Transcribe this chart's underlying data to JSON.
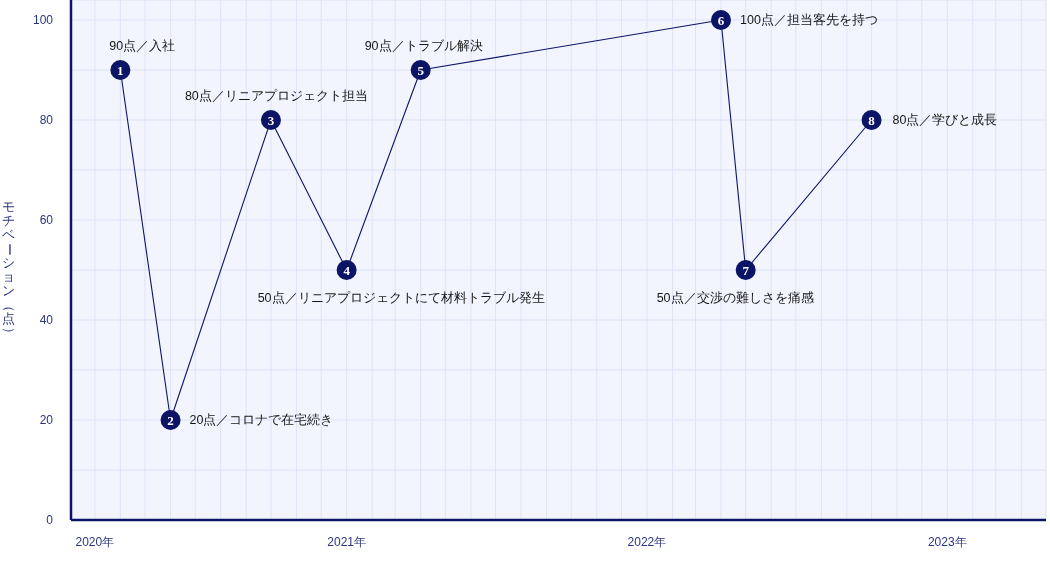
{
  "chart_data": {
    "type": "line",
    "ylabel": "モチベーション（点）",
    "x": [
      "2020-04",
      "2020-06",
      "2020-10",
      "2021-01",
      "2021-04",
      "2022-04",
      "2022-05",
      "2022-10"
    ],
    "series": [
      {
        "color": "#0c1466",
        "values": [
          90,
          20,
          80,
          50,
          90,
          100,
          50,
          80
        ]
      }
    ],
    "xlim": [
      "2020-02",
      "2023-05"
    ],
    "xticks": [
      {
        "value": "2020-02",
        "label": null
      },
      {
        "value": "2020-03",
        "label": "2020年"
      },
      {
        "value": "2020-04",
        "label": null
      },
      {
        "value": "2020-05",
        "label": null
      },
      {
        "value": "2020-06",
        "label": null
      },
      {
        "value": "2020-07",
        "label": null
      },
      {
        "value": "2020-08",
        "label": null
      },
      {
        "value": "2020-09",
        "label": null
      },
      {
        "value": "2020-10",
        "label": null
      },
      {
        "value": "2020-11",
        "label": null
      },
      {
        "value": "2020-12",
        "label": null
      },
      {
        "value": "2021-01",
        "label": "2021年"
      },
      {
        "value": "2021-02",
        "label": null
      },
      {
        "value": "2021-03",
        "label": null
      },
      {
        "value": "2021-04",
        "label": null
      },
      {
        "value": "2021-05",
        "label": null
      },
      {
        "value": "2021-06",
        "label": null
      },
      {
        "value": "2021-07",
        "label": null
      },
      {
        "value": "2021-08",
        "label": null
      },
      {
        "value": "2021-09",
        "label": null
      },
      {
        "value": "2021-10",
        "label": null
      },
      {
        "value": "2021-11",
        "label": null
      },
      {
        "value": "2021-12",
        "label": null
      },
      {
        "value": "2022-01",
        "label": "2022年"
      },
      {
        "value": "2022-02",
        "label": null
      },
      {
        "value": "2022-03",
        "label": null
      },
      {
        "value": "2022-04",
        "label": null
      },
      {
        "value": "2022-05",
        "label": null
      },
      {
        "value": "2022-06",
        "label": null
      },
      {
        "value": "2022-07",
        "label": null
      },
      {
        "value": "2022-08",
        "label": null
      },
      {
        "value": "2022-09",
        "label": null
      },
      {
        "value": "2022-10",
        "label": null
      },
      {
        "value": "2022-11",
        "label": null
      },
      {
        "value": "2022-12",
        "label": null
      },
      {
        "value": "2023-01",
        "label": "2023年"
      },
      {
        "value": "2023-02",
        "label": null
      },
      {
        "value": "2023-03",
        "label": null
      },
      {
        "value": "2023-04",
        "label": null
      },
      {
        "value": "2023-05",
        "label": null
      }
    ],
    "ylim": [
      0,
      104
    ],
    "yticks": [
      0,
      {
        "value": 10,
        "label": null
      },
      20,
      {
        "value": 30,
        "label": null
      },
      40,
      {
        "value": 50,
        "label": null
      },
      60,
      {
        "value": 70,
        "label": null
      },
      80,
      {
        "value": 90,
        "label": null
      },
      100
    ],
    "grid": true,
    "marker": "circle",
    "line_style": "solid",
    "annotations": [
      {
        "text": "1",
        "x": "2020-04",
        "y": 90
      },
      {
        "text": "2",
        "x": "2020-06",
        "y": 20
      },
      {
        "text": "3",
        "x": "2020-10",
        "y": 80
      },
      {
        "text": "4",
        "x": "2021-01",
        "y": 50
      },
      {
        "text": "5",
        "x": "2021-04",
        "y": 90
      },
      {
        "text": "6",
        "x": "2022-04",
        "y": 100
      },
      {
        "text": "7",
        "x": "2022-05",
        "y": 50
      },
      {
        "text": "8",
        "x": "2022-10",
        "y": 80
      },
      {
        "text": "90点／入社",
        "x": "2020-04",
        "y": 90
      },
      {
        "text": "20点／コロナで在宅続き",
        "x": "2020-06",
        "y": 20
      },
      {
        "text": "80点／リニアプロジェクト担当",
        "x": "2020-10",
        "y": 80
      },
      {
        "text": "50点／リニアプロジェクトにて材料トラブル発生",
        "x": "2021-01",
        "y": 50
      },
      {
        "text": "90点／トラブル解決",
        "x": "2021-04",
        "y": 90
      },
      {
        "text": "100点／担当客先を持つ",
        "x": "2022-04",
        "y": 100
      },
      {
        "text": "50点／交渉の難しさを痛感",
        "x": "2022-05",
        "y": 50
      },
      {
        "text": "80点／学びと成長",
        "x": "2022-10",
        "y": 80
      }
    ]
  }
}
